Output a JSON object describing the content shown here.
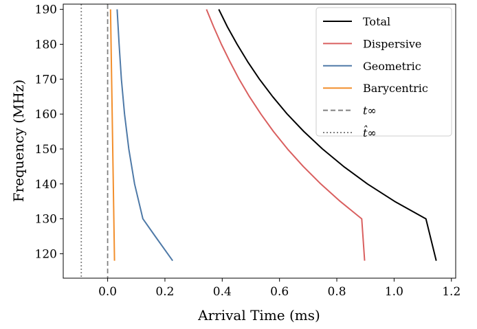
{
  "chart_data": {
    "type": "line",
    "title": "",
    "xlabel": "Arrival Time (ms)",
    "ylabel": "Frequency (MHz)",
    "xlim": [
      -0.155,
      1.215
    ],
    "ylim": [
      113,
      191.5
    ],
    "xticks": [
      0.0,
      0.2,
      0.4,
      0.6,
      0.8,
      1.0,
      1.2
    ],
    "xtick_labels": [
      "0.0",
      "0.2",
      "0.4",
      "0.6",
      "0.8",
      "1.0",
      "1.2"
    ],
    "yticks": [
      120,
      130,
      140,
      150,
      160,
      170,
      180,
      190
    ],
    "ytick_labels": [
      "120",
      "130",
      "140",
      "150",
      "160",
      "170",
      "180",
      "190"
    ],
    "grid": false,
    "legend_position": "top-right",
    "series": [
      {
        "name": "Total",
        "color": "#000000",
        "style": "solid",
        "points": [
          [
            0.388,
            190
          ],
          [
            0.418,
            185
          ],
          [
            0.452,
            180
          ],
          [
            0.489,
            175
          ],
          [
            0.53,
            170
          ],
          [
            0.576,
            165
          ],
          [
            0.627,
            160
          ],
          [
            0.685,
            155
          ],
          [
            0.75,
            150
          ],
          [
            0.824,
            145
          ],
          [
            0.907,
            140
          ],
          [
            1.002,
            135
          ],
          [
            1.111,
            130
          ],
          [
            1.147,
            118
          ]
        ]
      },
      {
        "name": "Dispersive",
        "color": "#d95f5f",
        "style": "solid",
        "points": [
          [
            0.345,
            190
          ],
          [
            0.37,
            185
          ],
          [
            0.397,
            180
          ],
          [
            0.427,
            175
          ],
          [
            0.459,
            170
          ],
          [
            0.495,
            165
          ],
          [
            0.535,
            160
          ],
          [
            0.579,
            155
          ],
          [
            0.628,
            150
          ],
          [
            0.683,
            145
          ],
          [
            0.744,
            140
          ],
          [
            0.812,
            135
          ],
          [
            0.887,
            130
          ],
          [
            0.897,
            118
          ]
        ]
      },
      {
        "name": "Geometric",
        "color": "#4e79a7",
        "style": "solid",
        "points": [
          [
            0.033,
            190
          ],
          [
            0.04,
            180
          ],
          [
            0.048,
            170
          ],
          [
            0.059,
            160
          ],
          [
            0.074,
            150
          ],
          [
            0.094,
            140
          ],
          [
            0.123,
            130
          ],
          [
            0.166,
            125
          ],
          [
            0.227,
            118
          ]
        ]
      },
      {
        "name": "Barycentric",
        "color": "#f28e2b",
        "style": "solid",
        "points": [
          [
            0.01,
            190
          ],
          [
            0.024,
            118
          ]
        ]
      },
      {
        "name": "t∞",
        "color": "#808080",
        "style": "dashed",
        "vline": 0.0
      },
      {
        "name": "t̂∞",
        "color": "#808080",
        "style": "dotted",
        "vline": -0.092
      }
    ]
  }
}
